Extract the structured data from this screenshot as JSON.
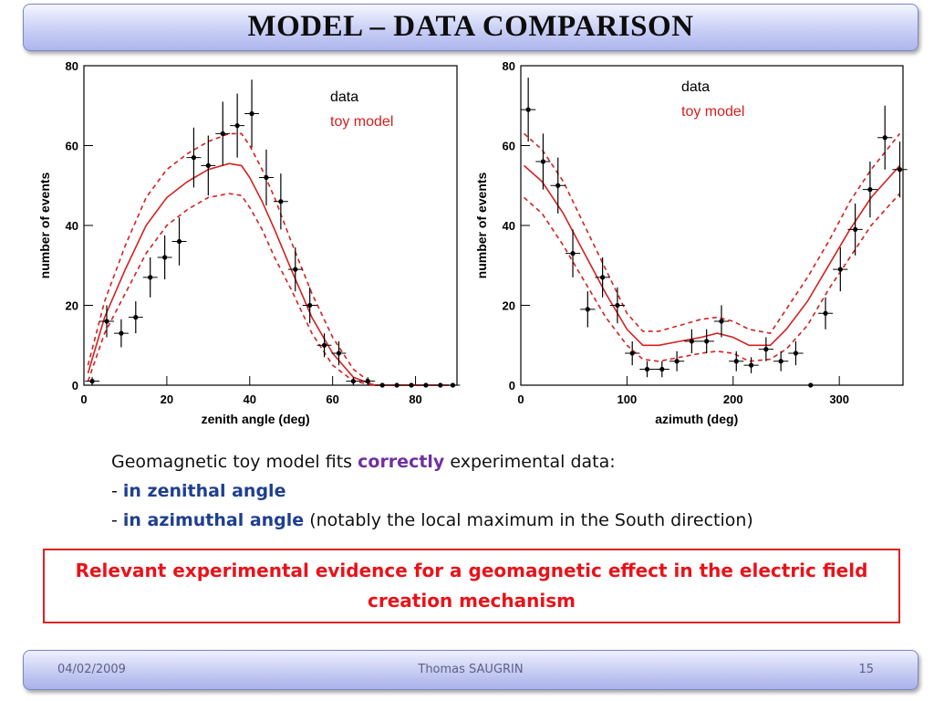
{
  "slide": {
    "title": "MODEL – DATA COMPARISON",
    "body": {
      "line1_pre": "Geomagnetic toy model fits ",
      "line1_emph": "correctly",
      "line1_post": " experimental data:",
      "line2_dash": "- ",
      "line2_emph": "in zenithal angle",
      "line3_dash": "- ",
      "line3_emph": "in azimuthal angle",
      "line3_post": " (notably the local maximum in the South direction)"
    },
    "conclusion": "Relevant experimental evidence for a geomagnetic effect in the electric field creation mechanism",
    "footer": {
      "date": "04/02/2009",
      "author": "Thomas SAUGRIN",
      "page": "15"
    },
    "colors": {
      "model": "#d42020",
      "data": "#000000",
      "emph_purple": "#7030a0",
      "emph_navy": "#1f3f8f",
      "conclusion_red": "#e8131a"
    }
  },
  "chart_data": [
    {
      "type": "scatter",
      "xlabel": "zenith angle (deg)",
      "ylabel": "number of events",
      "xlim": [
        0,
        90
      ],
      "ylim": [
        0,
        80
      ],
      "xticks": [
        0,
        20,
        40,
        60,
        80
      ],
      "yticks": [
        0,
        20,
        40,
        60,
        80
      ],
      "legend": [
        "data",
        "toy model"
      ],
      "data": {
        "x": [
          2,
          5.5,
          9,
          12.5,
          16,
          19.5,
          23,
          26.5,
          30,
          33.5,
          37,
          40.5,
          44,
          47.5,
          51,
          54.5,
          58,
          61.5,
          65,
          68.5,
          72,
          75.5,
          79,
          82.5,
          86,
          89
        ],
        "y": [
          1,
          16,
          13,
          17,
          27,
          32,
          36,
          57,
          55,
          63,
          65,
          68,
          52,
          46,
          29,
          20,
          10,
          8,
          1,
          1,
          0,
          0,
          0,
          0,
          0,
          0
        ],
        "yerr": [
          1,
          4,
          3.5,
          4,
          5,
          5.5,
          6,
          7.5,
          7.5,
          8,
          8,
          8.5,
          7,
          7,
          5.5,
          4.5,
          3,
          3,
          1,
          1,
          0,
          0,
          0,
          0,
          0,
          0
        ]
      },
      "model": {
        "x": [
          1,
          5,
          10,
          15,
          20,
          25,
          30,
          35,
          38,
          40,
          43,
          46,
          50,
          55,
          60,
          65,
          70,
          75,
          80,
          88
        ],
        "y": [
          3,
          17,
          29,
          40,
          47,
          51,
          54,
          55.5,
          55,
          52,
          46,
          39,
          29,
          17,
          8,
          2,
          0,
          0,
          0,
          0
        ],
        "y_high": [
          5,
          21,
          35,
          47,
          54,
          58,
          61,
          63,
          63,
          60,
          54,
          47,
          36,
          23,
          12,
          4,
          0,
          0,
          0,
          0
        ],
        "y_low": [
          1,
          13,
          23,
          33,
          40,
          44,
          47,
          48,
          47.5,
          44.5,
          39,
          32,
          24,
          13,
          5,
          1,
          0,
          0,
          0,
          0
        ]
      }
    },
    {
      "type": "scatter",
      "xlabel": "azimuth (deg)",
      "ylabel": "number of events",
      "xlim": [
        0,
        360
      ],
      "ylim": [
        0,
        80
      ],
      "xticks": [
        0,
        100,
        200,
        300
      ],
      "yticks": [
        0,
        20,
        40,
        60,
        80
      ],
      "legend": [
        "data",
        "toy model"
      ],
      "data": {
        "x": [
          7,
          21,
          35,
          49,
          63,
          77,
          91,
          105,
          119,
          133,
          147,
          161,
          175,
          189,
          203,
          217,
          231,
          245,
          259,
          273,
          287,
          301,
          315,
          329,
          343,
          357
        ],
        "y": [
          69,
          56,
          50,
          33,
          19,
          27,
          20,
          8,
          4,
          4,
          6,
          11,
          11,
          16,
          6,
          5,
          9,
          6,
          8,
          0,
          18,
          29,
          39,
          49,
          62,
          54
        ],
        "yerr": [
          8,
          7,
          7,
          6,
          4.5,
          5,
          4.5,
          3,
          2,
          2,
          2.5,
          3,
          3,
          4,
          2.5,
          2,
          3,
          2.5,
          3,
          0,
          4,
          5.5,
          6.5,
          7,
          8,
          7
        ]
      },
      "model": {
        "x": [
          3,
          20,
          40,
          60,
          80,
          100,
          115,
          130,
          150,
          170,
          185,
          200,
          215,
          235,
          250,
          270,
          290,
          310,
          330,
          357
        ],
        "y": [
          55,
          51,
          43,
          33,
          23,
          14,
          10,
          10,
          11,
          12,
          13,
          12,
          10,
          10,
          14,
          21,
          30,
          39,
          47,
          55
        ],
        "y_high": [
          63,
          59,
          51,
          40,
          29,
          18,
          13.5,
          13.5,
          15,
          16.5,
          17,
          16,
          14,
          13,
          19,
          27,
          36,
          46,
          54,
          63
        ],
        "y_low": [
          47,
          43,
          35,
          26,
          17,
          10,
          6.5,
          6,
          7,
          8,
          8.5,
          8,
          6,
          6.5,
          9,
          15,
          24,
          32,
          40,
          48
        ]
      }
    }
  ]
}
